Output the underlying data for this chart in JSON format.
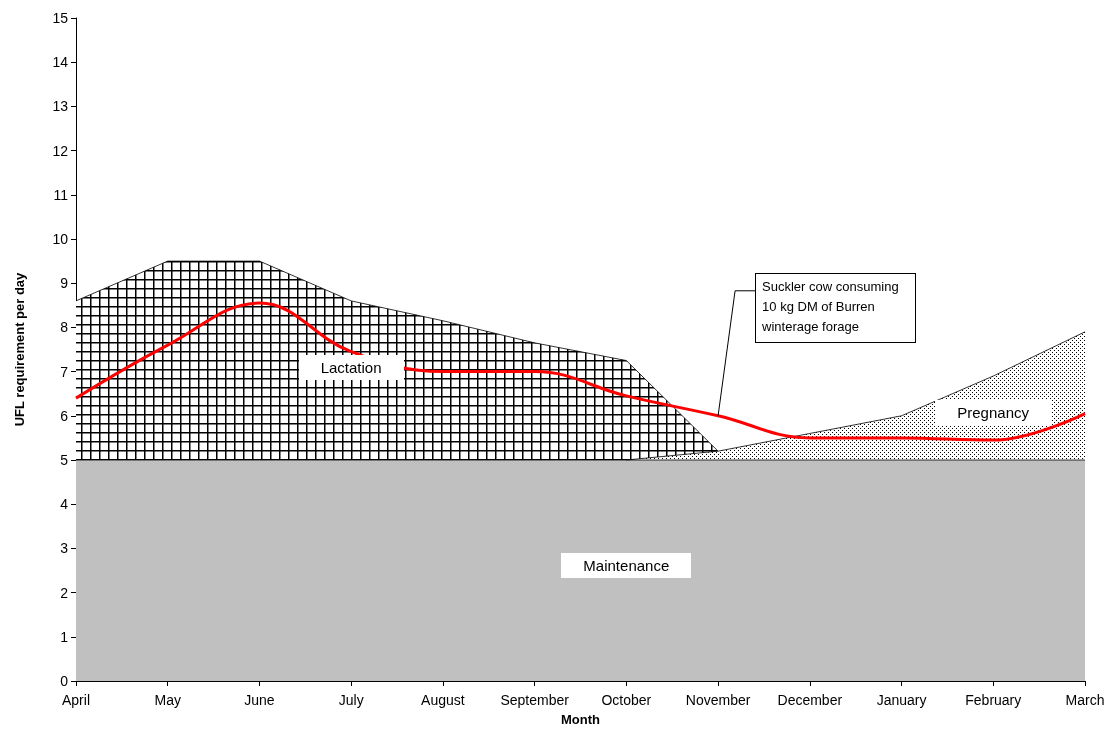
{
  "chart_data": {
    "type": "area",
    "xlabel": "Month",
    "ylabel": "UFL requirement per day",
    "categories": [
      "April",
      "May",
      "June",
      "July",
      "August",
      "September",
      "October",
      "November",
      "December",
      "January",
      "February",
      "March"
    ],
    "stacked": true,
    "series": [
      {
        "name": "Maintenance",
        "color": "#c0c0c0",
        "values": [
          5,
          5,
          5,
          5,
          5,
          5,
          5,
          5,
          5,
          5,
          5,
          5
        ]
      },
      {
        "name": "Pregnancy",
        "color": "#000000",
        "values": [
          null,
          null,
          null,
          null,
          null,
          null,
          0,
          0.2,
          0.6,
          1.0,
          1.9,
          2.9
        ]
      },
      {
        "name": "Lactation",
        "color": "#000000",
        "values": [
          3.6,
          4.5,
          4.5,
          3.6,
          3.15,
          2.65,
          2.25,
          0,
          null,
          null,
          null,
          null
        ]
      },
      {
        "type": "line",
        "color": "#ff0000",
        "values": [
          6.4,
          7.6,
          8.55,
          7.45,
          7.0,
          7.0,
          6.45,
          6.0,
          5.5,
          5.5,
          5.45,
          6.05
        ]
      }
    ],
    "ylim": [
      0,
      15
    ],
    "yticks": [
      0,
      1,
      2,
      3,
      4,
      5,
      6,
      7,
      8,
      9,
      10,
      11,
      12,
      13,
      14,
      15
    ],
    "grid": false,
    "legend": false,
    "annotations": [
      {
        "text": "Suckler cow consuming\n10 kg DM of Burren\nwinterage forage",
        "x": "November",
        "y": 6.0
      }
    ]
  }
}
